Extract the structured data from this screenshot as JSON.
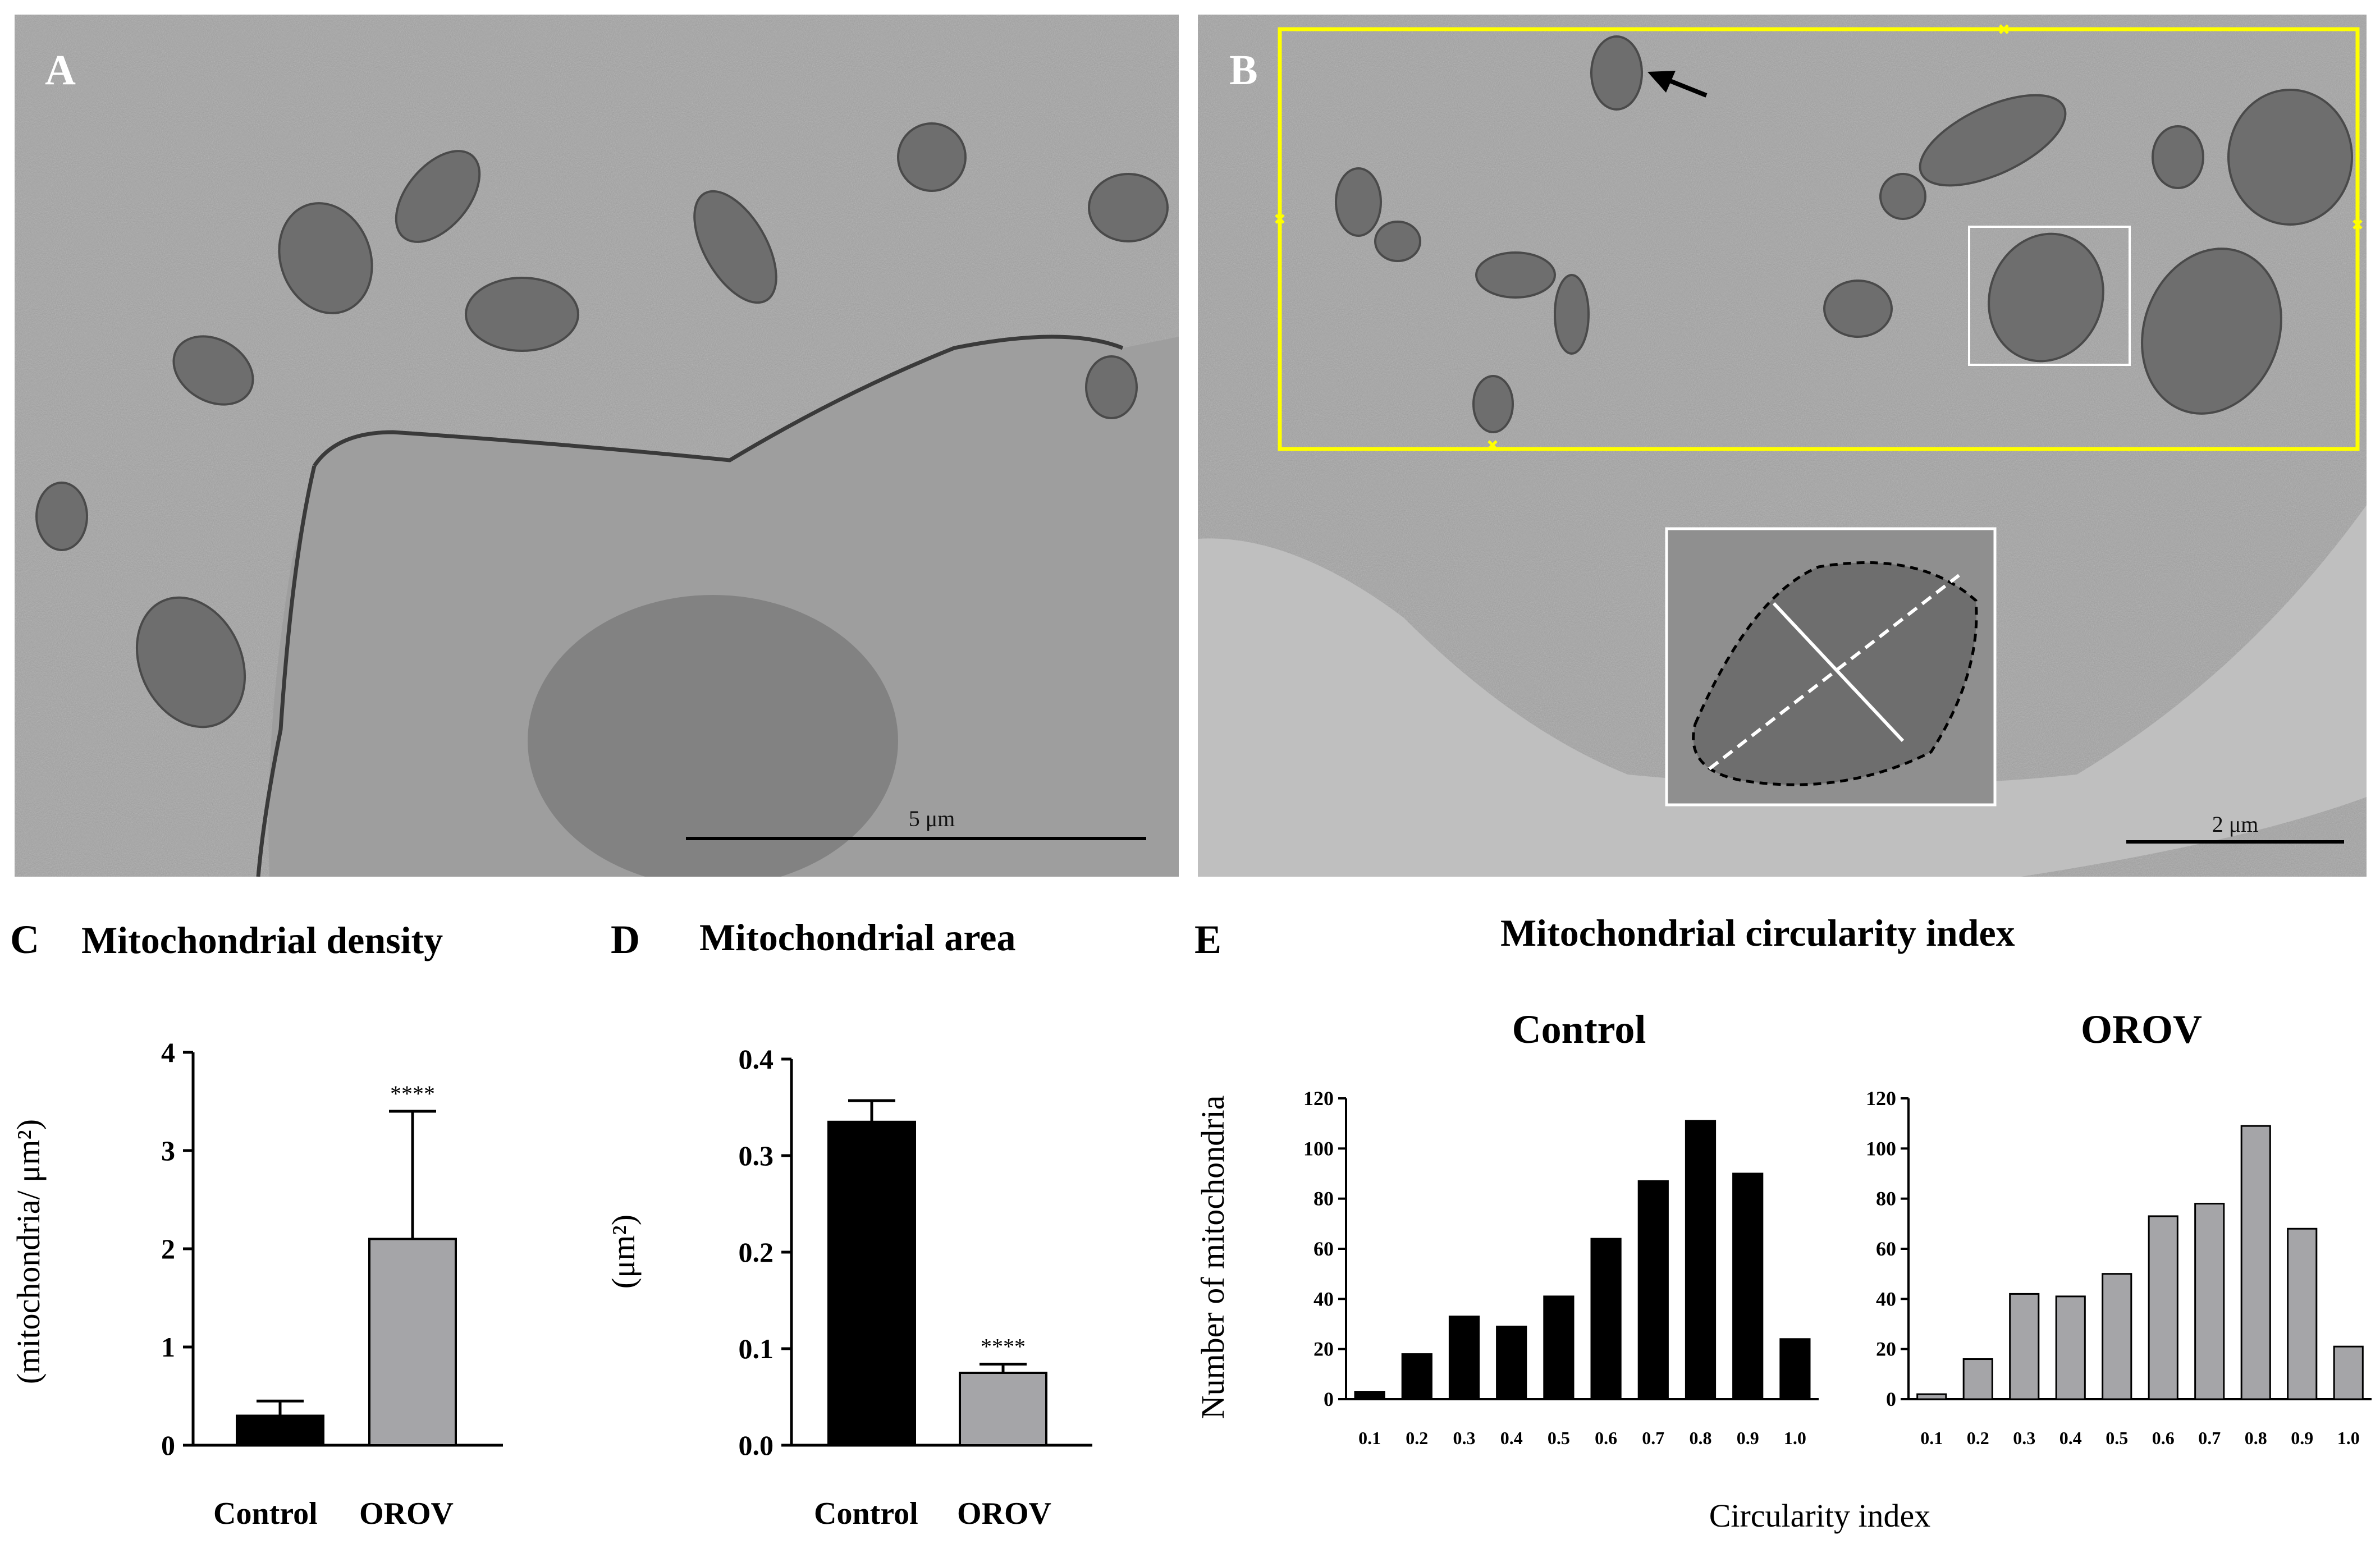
{
  "panels": {
    "A": {
      "letter": "A",
      "scale_label": "5 μm"
    },
    "B": {
      "letter": "B",
      "scale_label": "2 μm"
    }
  },
  "colors": {
    "control": "#000000",
    "orov": "#a5a5a8",
    "yellow_box": "#ffff00"
  },
  "chart_data": [
    {
      "panel": "C",
      "type": "bar",
      "title": "Mitochondrial density",
      "ylabel": "(mitochondria/ μm²)",
      "categories": [
        "Control",
        "OROV"
      ],
      "values": [
        0.3,
        2.1
      ],
      "error": [
        0.15,
        1.3
      ],
      "significance": [
        "",
        "****"
      ],
      "ylim": [
        0,
        4
      ],
      "yticks": [
        "0",
        "1",
        "2",
        "3",
        "4"
      ]
    },
    {
      "panel": "D",
      "type": "bar",
      "title": "Mitochondrial area",
      "ylabel": "(μm²)",
      "categories": [
        "Control",
        "OROV"
      ],
      "values": [
        0.335,
        0.075
      ],
      "error": [
        0.022,
        0.009
      ],
      "significance": [
        "",
        "****"
      ],
      "ylim": [
        0,
        0.4
      ],
      "yticks": [
        "0.0",
        "0.1",
        "0.2",
        "0.3",
        "0.4"
      ]
    },
    {
      "panel": "E",
      "type": "bar",
      "title": "Mitochondrial circularity index",
      "xlabel": "Circularity index",
      "ylabel": "Number of mitochondria",
      "categories": [
        "0.1",
        "0.2",
        "0.3",
        "0.4",
        "0.5",
        "0.6",
        "0.7",
        "0.8",
        "0.9",
        "1.0"
      ],
      "ylim": [
        0,
        120
      ],
      "yticks": [
        "0",
        "20",
        "40",
        "60",
        "80",
        "100",
        "120"
      ],
      "series": [
        {
          "name": "Control",
          "values": [
            3,
            18,
            33,
            29,
            41,
            64,
            87,
            111,
            90,
            24
          ]
        },
        {
          "name": "OROV",
          "values": [
            2,
            16,
            42,
            41,
            50,
            73,
            78,
            109,
            68,
            21
          ]
        }
      ]
    }
  ]
}
